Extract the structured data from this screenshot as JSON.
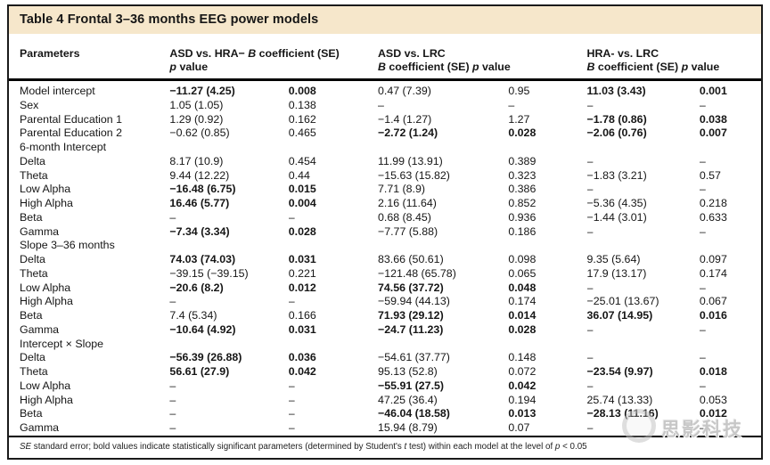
{
  "table": {
    "title": "Table 4 Frontal 3–36 months EEG power models",
    "columns": {
      "parameters": "Parameters",
      "asd_hra": {
        "pre": "ASD vs. HRA− ",
        "b": "B",
        "suf": " coefficient (SE)",
        "p": "p",
        "psuf": " value"
      },
      "asd_lrc": {
        "line1": "ASD vs. LRC",
        "b": "B",
        "suf": " coefficient (SE) ",
        "p": "p",
        "psuf": " value"
      },
      "hra_lrc": {
        "line1": "HRA- vs. LRC",
        "b": "B",
        "suf": " coefficient (SE) ",
        "p": "p",
        "psuf": " value"
      }
    },
    "rows": [
      {
        "label": "Model intercept",
        "section": false,
        "cells": [
          [
            "−11.27 (4.25)",
            1
          ],
          [
            "0.008",
            1
          ],
          [
            "0.47 (7.39)",
            0
          ],
          [
            "0.95",
            0
          ],
          [
            "11.03 (3.43)",
            1
          ],
          [
            "0.001",
            1
          ]
        ]
      },
      {
        "label": "Sex",
        "section": false,
        "cells": [
          [
            "1.05 (1.05)",
            0
          ],
          [
            "0.138",
            0
          ],
          [
            "–",
            0
          ],
          [
            "–",
            0
          ],
          [
            "–",
            0
          ],
          [
            "–",
            0
          ]
        ]
      },
      {
        "label": "Parental Education 1",
        "section": false,
        "cells": [
          [
            "1.29 (0.92)",
            0
          ],
          [
            "0.162",
            0
          ],
          [
            "−1.4 (1.27)",
            0
          ],
          [
            "1.27",
            0
          ],
          [
            "−1.78 (0.86)",
            1
          ],
          [
            "0.038",
            1
          ]
        ]
      },
      {
        "label": "Parental Education 2",
        "section": false,
        "cells": [
          [
            "−0.62 (0.85)",
            0
          ],
          [
            "0.465",
            0
          ],
          [
            "−2.72 (1.24)",
            1
          ],
          [
            "0.028",
            1
          ],
          [
            "−2.06 (0.76)",
            1
          ],
          [
            "0.007",
            1
          ]
        ]
      },
      {
        "label": "6-month Intercept",
        "section": true,
        "cells": []
      },
      {
        "label": "Delta",
        "section": false,
        "cells": [
          [
            "8.17 (10.9)",
            0
          ],
          [
            "0.454",
            0
          ],
          [
            "11.99 (13.91)",
            0
          ],
          [
            "0.389",
            0
          ],
          [
            "–",
            0
          ],
          [
            "–",
            0
          ]
        ]
      },
      {
        "label": "Theta",
        "section": false,
        "cells": [
          [
            "9.44 (12.22)",
            0
          ],
          [
            "0.44",
            0
          ],
          [
            "−15.63 (15.82)",
            0
          ],
          [
            "0.323",
            0
          ],
          [
            "−1.83 (3.21)",
            0
          ],
          [
            "0.57",
            0
          ]
        ]
      },
      {
        "label": "Low Alpha",
        "section": false,
        "cells": [
          [
            "−16.48 (6.75)",
            1
          ],
          [
            "0.015",
            1
          ],
          [
            "7.71 (8.9)",
            0
          ],
          [
            "0.386",
            0
          ],
          [
            "–",
            0
          ],
          [
            "–",
            0
          ]
        ]
      },
      {
        "label": "High Alpha",
        "section": false,
        "cells": [
          [
            "16.46 (5.77)",
            1
          ],
          [
            "0.004",
            1
          ],
          [
            "2.16 (11.64)",
            0
          ],
          [
            "0.852",
            0
          ],
          [
            "−5.36 (4.35)",
            0
          ],
          [
            "0.218",
            0
          ]
        ]
      },
      {
        "label": "Beta",
        "section": false,
        "cells": [
          [
            "–",
            0
          ],
          [
            "–",
            0
          ],
          [
            "0.68 (8.45)",
            0
          ],
          [
            "0.936",
            0
          ],
          [
            "−1.44 (3.01)",
            0
          ],
          [
            "0.633",
            0
          ]
        ]
      },
      {
        "label": "Gamma",
        "section": false,
        "cells": [
          [
            "−7.34 (3.34)",
            1
          ],
          [
            "0.028",
            1
          ],
          [
            "−7.77 (5.88)",
            0
          ],
          [
            "0.186",
            0
          ],
          [
            "–",
            0
          ],
          [
            "–",
            0
          ]
        ]
      },
      {
        "label": "Slope 3–36 months",
        "section": true,
        "cells": []
      },
      {
        "label": "Delta",
        "section": false,
        "cells": [
          [
            "74.03 (74.03)",
            1
          ],
          [
            "0.031",
            1
          ],
          [
            "83.66 (50.61)",
            0
          ],
          [
            "0.098",
            0
          ],
          [
            "9.35 (5.64)",
            0
          ],
          [
            "0.097",
            0
          ]
        ]
      },
      {
        "label": "Theta",
        "section": false,
        "cells": [
          [
            "−39.15 (−39.15)",
            0
          ],
          [
            "0.221",
            0
          ],
          [
            "−121.48 (65.78)",
            0
          ],
          [
            "0.065",
            0
          ],
          [
            "17.9 (13.17)",
            0
          ],
          [
            "0.174",
            0
          ]
        ]
      },
      {
        "label": "Low Alpha",
        "section": false,
        "cells": [
          [
            "−20.6 (8.2)",
            1
          ],
          [
            "0.012",
            1
          ],
          [
            "74.56 (37.72)",
            1
          ],
          [
            "0.048",
            1
          ],
          [
            "–",
            0
          ],
          [
            "–",
            0
          ]
        ]
      },
      {
        "label": "High Alpha",
        "section": false,
        "cells": [
          [
            "–",
            0
          ],
          [
            "–",
            0
          ],
          [
            "−59.94 (44.13)",
            0
          ],
          [
            "0.174",
            0
          ],
          [
            "−25.01 (13.67)",
            0
          ],
          [
            "0.067",
            0
          ]
        ]
      },
      {
        "label": "Beta",
        "section": false,
        "cells": [
          [
            "7.4 (5.34)",
            0
          ],
          [
            "0.166",
            0
          ],
          [
            "71.93 (29.12)",
            1
          ],
          [
            "0.014",
            1
          ],
          [
            "36.07 (14.95)",
            1
          ],
          [
            "0.016",
            1
          ]
        ]
      },
      {
        "label": "Gamma",
        "section": false,
        "cells": [
          [
            "−10.64 (4.92)",
            1
          ],
          [
            "0.031",
            1
          ],
          [
            "−24.7 (11.23)",
            1
          ],
          [
            "0.028",
            1
          ],
          [
            "–",
            0
          ],
          [
            "–",
            0
          ]
        ]
      },
      {
        "label": "Intercept × Slope",
        "section": true,
        "cells": []
      },
      {
        "label": "Delta",
        "section": false,
        "cells": [
          [
            "−56.39 (26.88)",
            1
          ],
          [
            "0.036",
            1
          ],
          [
            "−54.61 (37.77)",
            0
          ],
          [
            "0.148",
            0
          ],
          [
            "–",
            0
          ],
          [
            "–",
            0
          ]
        ]
      },
      {
        "label": "Theta",
        "section": false,
        "cells": [
          [
            "56.61 (27.9)",
            1
          ],
          [
            "0.042",
            1
          ],
          [
            "95.13 (52.8)",
            0
          ],
          [
            "0.072",
            0
          ],
          [
            "−23.54 (9.97)",
            1
          ],
          [
            "0.018",
            1
          ]
        ]
      },
      {
        "label": "Low Alpha",
        "section": false,
        "cells": [
          [
            "–",
            0
          ],
          [
            "–",
            0
          ],
          [
            "−55.91 (27.5)",
            1
          ],
          [
            "0.042",
            1
          ],
          [
            "–",
            0
          ],
          [
            "–",
            0
          ]
        ]
      },
      {
        "label": "High Alpha",
        "section": false,
        "cells": [
          [
            "–",
            0
          ],
          [
            "–",
            0
          ],
          [
            "47.25 (36.4)",
            0
          ],
          [
            "0.194",
            0
          ],
          [
            "25.74 (13.33)",
            0
          ],
          [
            "0.053",
            0
          ]
        ]
      },
      {
        "label": "Beta",
        "section": false,
        "cells": [
          [
            "–",
            0
          ],
          [
            "–",
            0
          ],
          [
            "−46.04 (18.58)",
            1
          ],
          [
            "0.013",
            1
          ],
          [
            "−28.13 (11.16)",
            1
          ],
          [
            "0.012",
            1
          ]
        ]
      },
      {
        "label": "Gamma",
        "section": false,
        "cells": [
          [
            "–",
            0
          ],
          [
            "–",
            0
          ],
          [
            "15.94 (8.79)",
            0
          ],
          [
            "0.07",
            0
          ],
          [
            "–",
            0
          ],
          [
            "–",
            0
          ]
        ]
      }
    ],
    "footnote_parts": [
      [
        "SE",
        true
      ],
      [
        " standard error; bold values indicate statistically significant parameters (determined by Student's ",
        false
      ],
      [
        "t",
        true
      ],
      [
        " test) within each model at the level of ",
        false
      ],
      [
        "p",
        true
      ],
      [
        " < 0.05",
        false
      ]
    ]
  },
  "watermark": {
    "text": "思影科技"
  },
  "colors": {
    "title_bar": "#f6e7cb",
    "border": "#1a1a1a",
    "watermark": "#c7c7c7"
  }
}
